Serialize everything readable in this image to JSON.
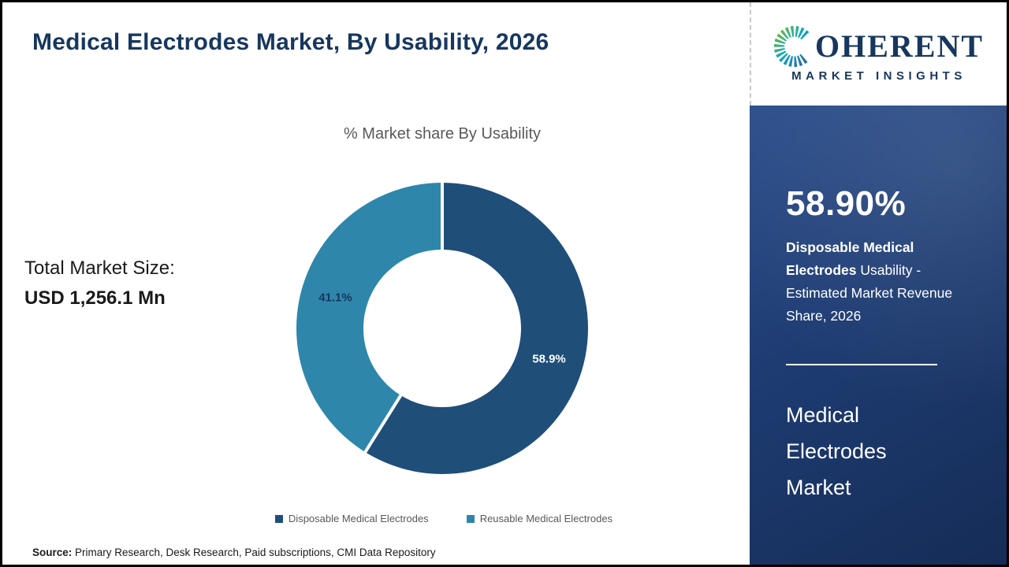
{
  "header": {
    "title": "Medical Electrodes Market, By Usability, 2026"
  },
  "logo": {
    "c": "C",
    "rest": "OHERENT",
    "tagline": "MARKET INSIGHTS"
  },
  "main": {
    "total_label": "Total Market Size:",
    "total_value": "USD 1,256.1 Mn"
  },
  "chart_data": {
    "type": "pie",
    "donut": true,
    "title": "% Market share By Usability",
    "start_angle_deg": 0,
    "direction": "clockwise",
    "categories": [
      "Disposable Medical Electrodes",
      "Reusable Medical Electrodes"
    ],
    "values": [
      58.9,
      41.1
    ],
    "data_labels": [
      "58.9%",
      "41.1%"
    ],
    "colors": [
      "#1f4e79",
      "#2e86ab"
    ],
    "data_label_colors": [
      "#ffffff",
      "#17375e"
    ],
    "legend_position": "bottom"
  },
  "sidebar": {
    "stat_value": "58.90%",
    "stat_desc_bold": "Disposable Medical Electrodes",
    "stat_desc_rest": " Usability - Estimated Market Revenue Share, 2026",
    "panel_lines": [
      "Medical",
      "Electrodes",
      "Market"
    ]
  },
  "footer": {
    "source_label": "Source:",
    "source_text": " Primary Research, Desk Research, Paid subscriptions, CMI Data Repository"
  }
}
